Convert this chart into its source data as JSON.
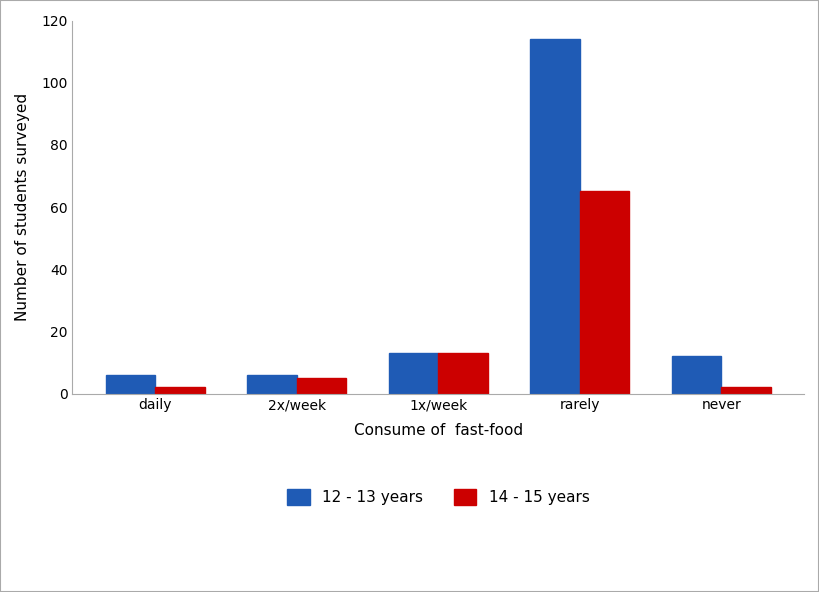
{
  "categories": [
    "daily",
    "2x/week",
    "1x/week",
    "rarely",
    "never"
  ],
  "series": [
    {
      "label": "12 - 13 years",
      "color": "#1F5BB5",
      "values": [
        6,
        6,
        13,
        114,
        12
      ]
    },
    {
      "label": "14 - 15 years",
      "color": "#CC0000",
      "values": [
        2,
        5,
        13,
        65,
        2
      ]
    }
  ],
  "xlabel": "Consume of  fast-food",
  "ylabel": "Number of students surveyed",
  "ylim": [
    0,
    120
  ],
  "yticks": [
    0,
    20,
    40,
    60,
    80,
    100,
    120
  ],
  "bar_width": 0.35,
  "background_color": "#ffffff",
  "border_color": "#aaaaaa"
}
